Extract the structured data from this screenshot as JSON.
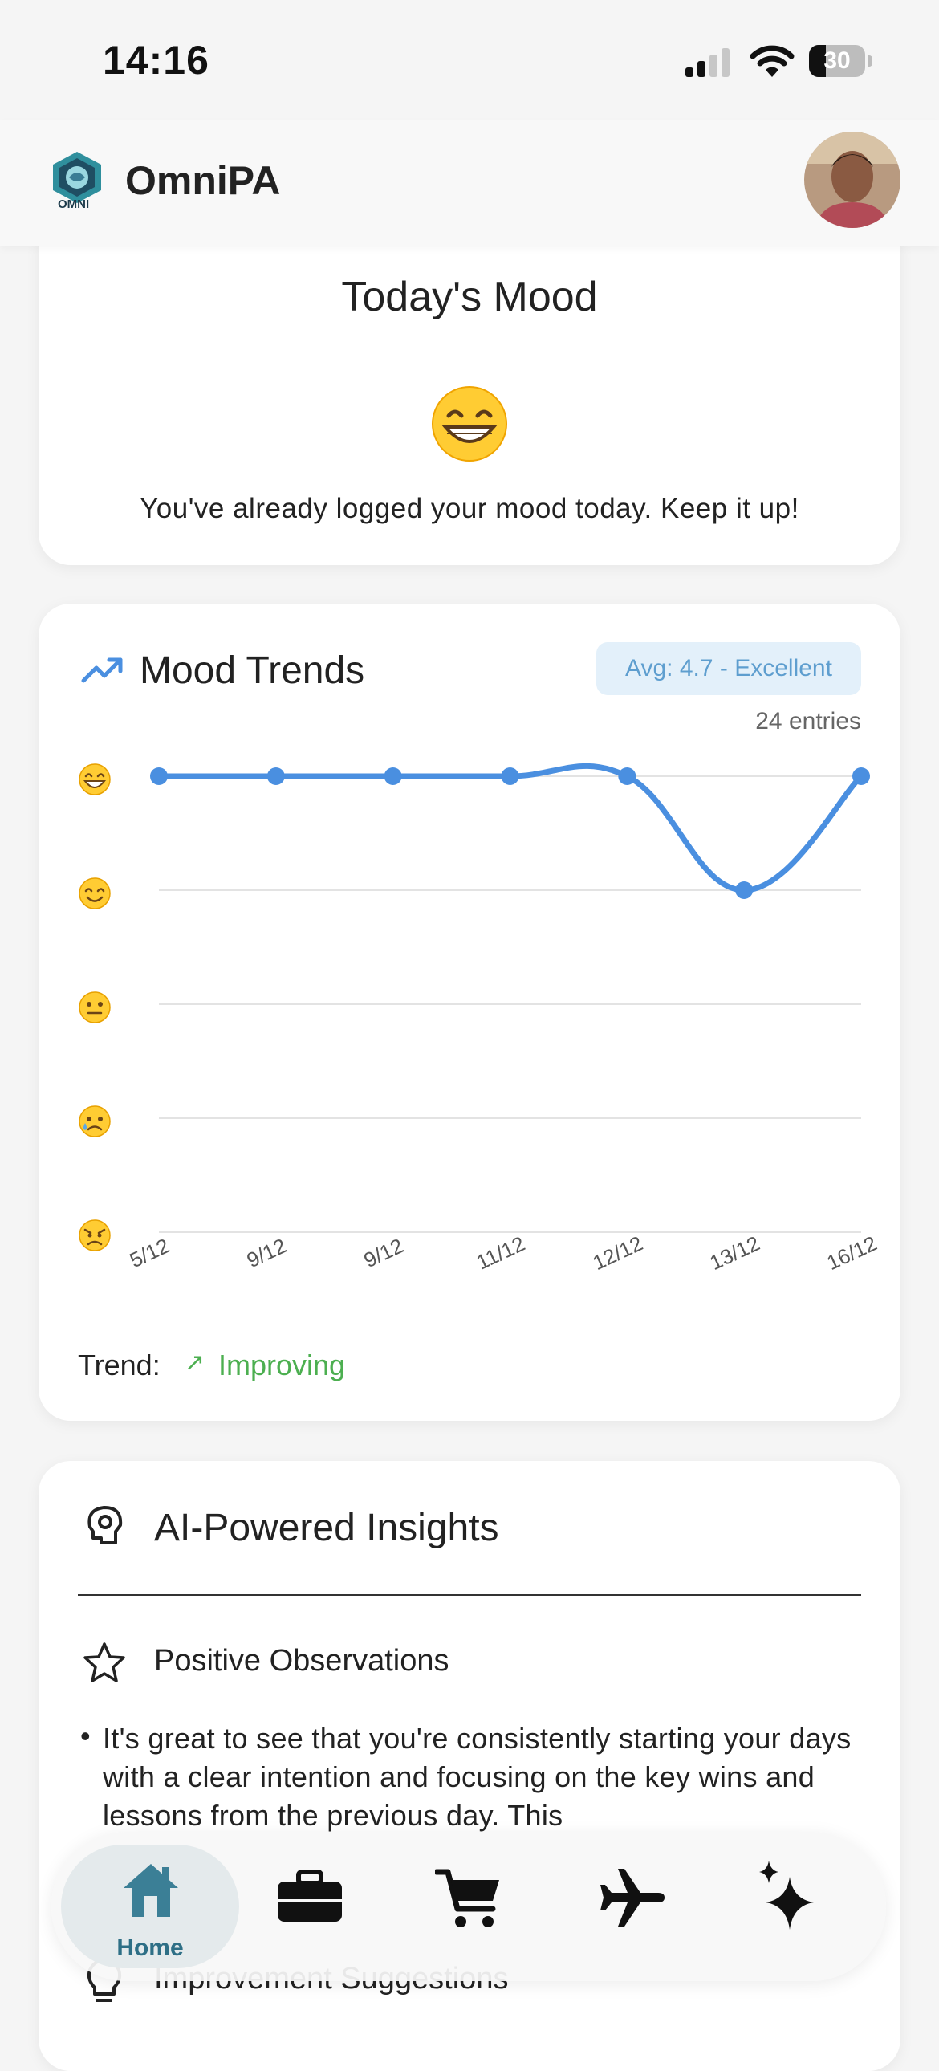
{
  "status_bar": {
    "time": "14:16",
    "battery_level": "30",
    "battery_fraction": 0.3
  },
  "header": {
    "app_name": "OmniPA",
    "logo_text": "OMNI"
  },
  "mood_card": {
    "title": "Today's Mood",
    "emoji": "grinning-face",
    "message": "You've already logged your mood today. Keep it up!"
  },
  "mood_trends": {
    "title": "Mood Trends",
    "average_badge": "Avg: 4.7 - Excellent",
    "entries": "24 entries",
    "trend_label": "Trend:",
    "trend_arrow": "↗",
    "trend_value": "Improving",
    "accent_color": "#4a8fe0",
    "trend_color": "#4caf50"
  },
  "chart_data": {
    "type": "line",
    "categories": [
      "5/12",
      "9/12",
      "9/12",
      "11/12",
      "12/12",
      "13/12",
      "16/12"
    ],
    "values": [
      5,
      5,
      5,
      5,
      5,
      4,
      5
    ],
    "ylim": [
      1,
      5
    ],
    "y_ticks": [
      "angry-face",
      "crying-face",
      "neutral-face",
      "smiling-face",
      "grinning-face"
    ],
    "grid": true,
    "xlabel": "",
    "ylabel": ""
  },
  "insights": {
    "title": "AI-Powered Insights",
    "positive_title": "Positive Observations",
    "positive_text": "It's great to see that you're consistently starting your days with a clear intention and focusing on the key wins and lessons from the previous day. This",
    "improvement_title": "Improvement Suggestions"
  },
  "nav": {
    "home_label": "Home",
    "items": [
      "home-icon",
      "briefcase-icon",
      "cart-icon",
      "airplane-icon",
      "sparkle-icon"
    ],
    "active_color": "#2e6f86"
  }
}
